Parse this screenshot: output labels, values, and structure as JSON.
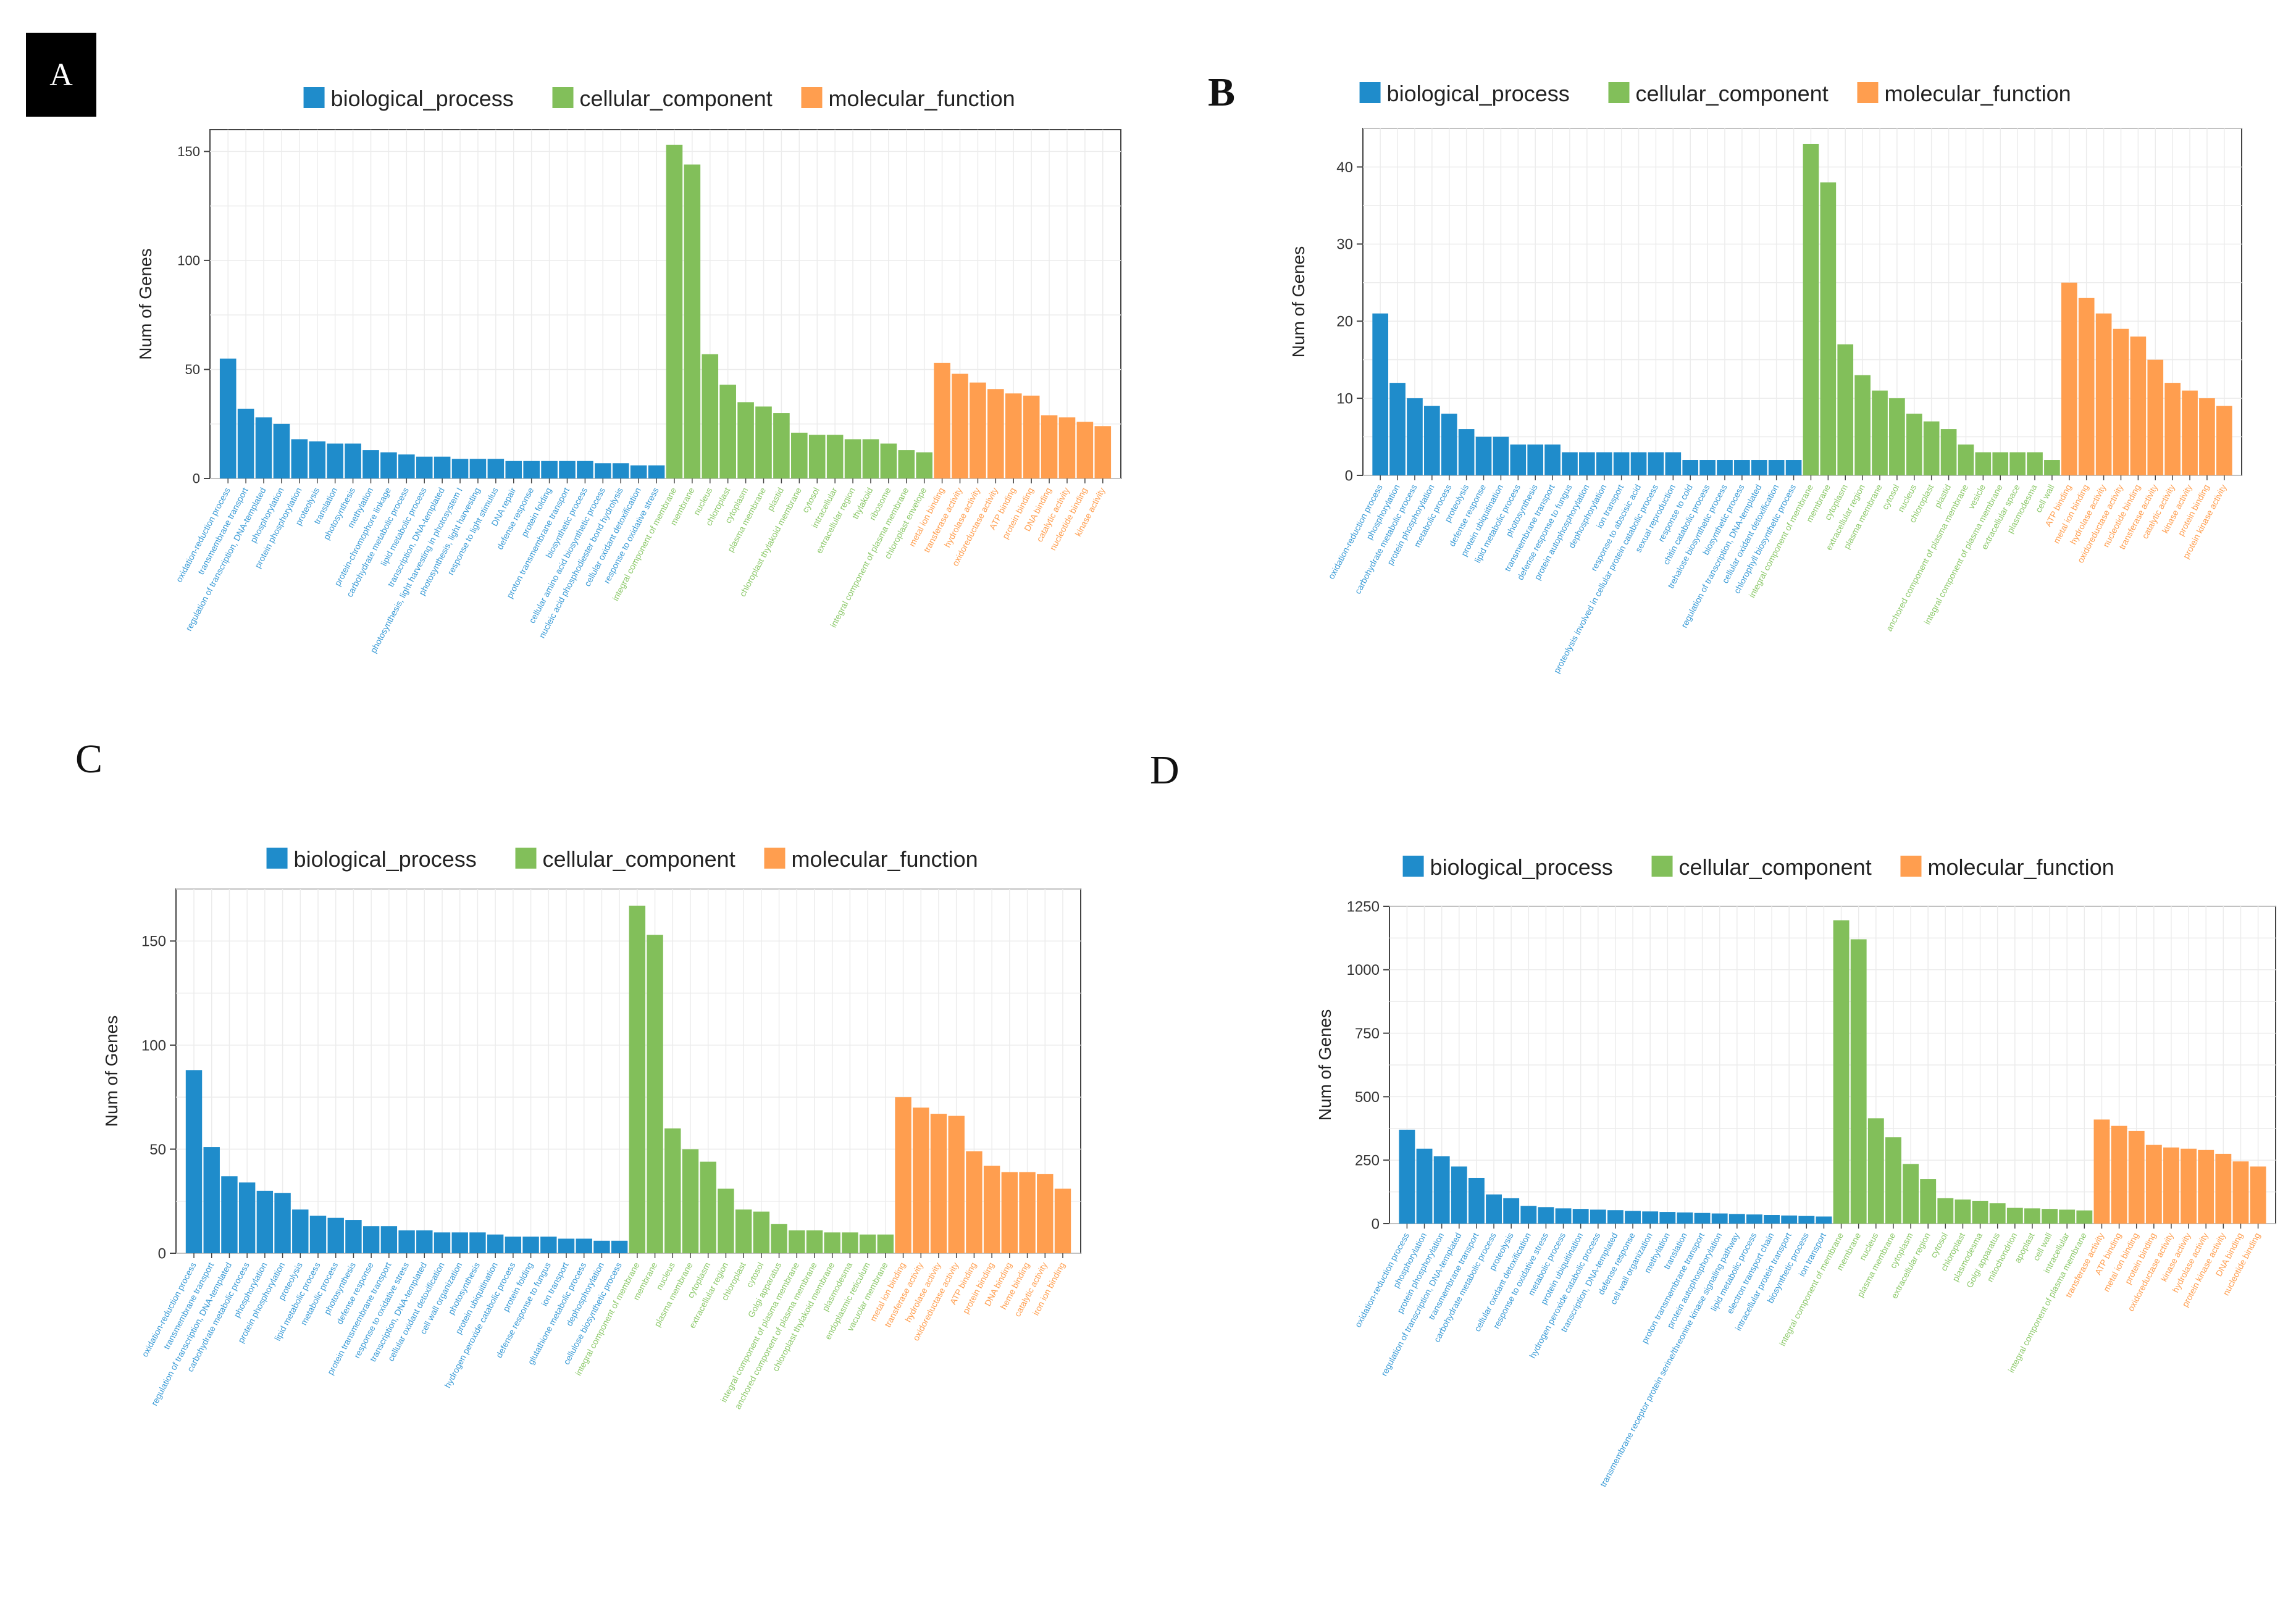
{
  "legend": {
    "biological_process": "biological_process",
    "cellular_component": "cellular_component",
    "molecular_function": "molecular_function"
  },
  "colors": {
    "biological_process": "#1f8ccb",
    "cellular_component": "#82bf5a",
    "molecular_function": "#ff9e4f"
  },
  "chart_data": [
    {
      "panel": "A",
      "type": "bar",
      "ylabel": "Num of Genes",
      "ylim": [
        0,
        160
      ],
      "yticks": [
        0,
        50,
        100,
        150
      ],
      "groups": [
        {
          "name": "biological_process",
          "categories": [
            "oxidation-reduction process",
            "transmembrane transport",
            "regulation of transcription, DNA-templated",
            "phosphorylation",
            "protein phosphorylation",
            "proteolysis",
            "translation",
            "photosynthesis",
            "methylation",
            "protein-chromophore linkage",
            "carbohydrate metabolic process",
            "lipid metabolic process",
            "transcription, DNA-templated",
            "photosynthesis, light harvesting in photosystem I",
            "photosynthesis, light harvesting",
            "response to light stimulus",
            "DNA repair",
            "defense response",
            "protein folding",
            "proton transmembrane transport",
            "biosynthetic process",
            "cellular amino acid biosynthetic process",
            "nucleic acid phosphodiester bond hydrolysis",
            "cellular oxidant detoxification",
            "response to oxidative stress"
          ],
          "values": [
            55,
            32,
            28,
            25,
            18,
            17,
            16,
            16,
            13,
            12,
            11,
            10,
            10,
            9,
            9,
            9,
            8,
            8,
            8,
            8,
            8,
            7,
            7,
            6,
            6
          ]
        },
        {
          "name": "cellular_component",
          "categories": [
            "integral component of membrane",
            "membrane",
            "nucleus",
            "chloroplast",
            "cytoplasm",
            "plasma membrane",
            "plastid",
            "chloroplast thylakoid membrane",
            "cytosol",
            "intracellular",
            "extracellular region",
            "thylakoid",
            "ribosome",
            "integral component of plasma membrane",
            "chloroplast envelope"
          ],
          "values": [
            153,
            144,
            57,
            43,
            35,
            33,
            30,
            21,
            20,
            20,
            18,
            18,
            16,
            13,
            12
          ]
        },
        {
          "name": "molecular_function",
          "categories": [
            "metal ion binding",
            "transferase activity",
            "hydrolase activity",
            "oxidoreductase activity",
            "ATP binding",
            "protein binding",
            "DNA binding",
            "catalytic activity",
            "nucleotide binding",
            "kinase activity"
          ],
          "values": [
            53,
            48,
            44,
            41,
            39,
            38,
            29,
            28,
            26,
            24
          ]
        }
      ]
    },
    {
      "panel": "B",
      "type": "bar",
      "ylabel": "Num of Genes",
      "ylim": [
        0,
        45
      ],
      "yticks": [
        0,
        10,
        20,
        30,
        40
      ],
      "groups": [
        {
          "name": "biological_process",
          "categories": [
            "oxidation-reduction process",
            "phosphorylation",
            "carbohydrate metabolic process",
            "protein phosphorylation",
            "metabolic process",
            "proteolysis",
            "defense response",
            "protein ubiquitination",
            "lipid metabolic process",
            "photosynthesis",
            "transmembrane transport",
            "defense response to fungus",
            "protein autophosphorylation",
            "dephosphorylation",
            "ion transport",
            "response to abscisic acid",
            "proteolysis involved in cellular protein catabolic process",
            "sexual reproduction",
            "response to cold",
            "chitin catabolic process",
            "trehalose biosynthetic process",
            "biosynthetic process",
            "regulation of transcription, DNA-templated",
            "cellular oxidant detoxification",
            "chlorophyll biosynthetic process"
          ],
          "values": [
            21,
            12,
            10,
            9,
            8,
            6,
            5,
            5,
            4,
            4,
            4,
            3,
            3,
            3,
            3,
            3,
            3,
            3,
            2,
            2,
            2,
            2,
            2,
            2,
            2
          ]
        },
        {
          "name": "cellular_component",
          "categories": [
            "integral component of membrane",
            "membrane",
            "cytoplasm",
            "extracellular region",
            "plasma membrane",
            "cytosol",
            "nucleus",
            "chloroplast",
            "plastid",
            "anchored component of plasma membrane",
            "vesicle",
            "integral component of plasma membrane",
            "extracellular space",
            "plasmodesma",
            "cell wall"
          ],
          "values": [
            43,
            38,
            17,
            13,
            11,
            10,
            8,
            7,
            6,
            4,
            3,
            3,
            3,
            3,
            2
          ]
        },
        {
          "name": "molecular_function",
          "categories": [
            "ATP binding",
            "metal ion binding",
            "hydrolase activity",
            "oxidoreductase activity",
            "nucleotide binding",
            "transferase activity",
            "catalytic activity",
            "kinase activity",
            "protein binding",
            "protein kinase activity"
          ],
          "values": [
            25,
            23,
            21,
            19,
            18,
            15,
            12,
            11,
            10,
            9
          ]
        }
      ]
    },
    {
      "panel": "C",
      "type": "bar",
      "ylabel": "Num of Genes",
      "ylim": [
        0,
        175
      ],
      "yticks": [
        0,
        50,
        100,
        150
      ],
      "groups": [
        {
          "name": "biological_process",
          "categories": [
            "oxidation-reduction process",
            "transmembrane transport",
            "regulation of transcription, DNA-templated",
            "carbohydrate metabolic process",
            "phosphorylation",
            "protein phosphorylation",
            "proteolysis",
            "lipid metabolic process",
            "metabolic process",
            "photosynthesis",
            "defense response",
            "protein transmembrane transport",
            "response to oxidative stress",
            "transcription, DNA-templated",
            "cellular oxidant detoxification",
            "cell wall organization",
            "photosynthesis",
            "protein ubiquitination",
            "hydrogen peroxide catabolic process",
            "protein folding",
            "defense response to fungus",
            "ion transport",
            "glutathione metabolic process",
            "dephosphorylation",
            "cellulose biosynthetic process"
          ],
          "values": [
            88,
            51,
            37,
            34,
            30,
            29,
            21,
            18,
            17,
            16,
            13,
            13,
            11,
            11,
            10,
            10,
            10,
            9,
            8,
            8,
            8,
            7,
            7,
            6,
            6
          ]
        },
        {
          "name": "cellular_component",
          "categories": [
            "integral component of membrane",
            "membrane",
            "nucleus",
            "plasma membrane",
            "cytoplasm",
            "extracellular region",
            "chloroplast",
            "cytosol",
            "Golgi apparatus",
            "integral component of plasma membrane",
            "anchored component of plasma membrane",
            "chloroplast thylakoid membrane",
            "plasmodesma",
            "endoplasmic reticulum",
            "vacuolar membrane"
          ],
          "values": [
            167,
            153,
            60,
            50,
            44,
            31,
            21,
            20,
            14,
            11,
            11,
            10,
            10,
            9,
            9
          ]
        },
        {
          "name": "molecular_function",
          "categories": [
            "metal ion binding",
            "transferase activity",
            "hydrolase activity",
            "oxidoreductase activity",
            "ATP binding",
            "protein binding",
            "DNA binding",
            "heme binding",
            "catalytic activity",
            "iron ion binding"
          ],
          "values": [
            75,
            70,
            67,
            66,
            49,
            42,
            39,
            39,
            38,
            31
          ]
        }
      ]
    },
    {
      "panel": "D",
      "type": "bar",
      "ylabel": "Num of Genes",
      "ylim": [
        0,
        1250
      ],
      "yticks": [
        0,
        250,
        500,
        750,
        1000,
        1250
      ],
      "groups": [
        {
          "name": "biological_process",
          "categories": [
            "oxidation-reduction process",
            "phosphorylation",
            "protein phosphorylation",
            "regulation of transcription, DNA-templated",
            "transmembrane transport",
            "carbohydrate metabolic process",
            "proteolysis",
            "cellular oxidant detoxification",
            "response to oxidative stress",
            "metabolic process",
            "protein ubiquitination",
            "hydrogen peroxide catabolic process",
            "transcription, DNA-templated",
            "defense response",
            "cell wall organization",
            "methylation",
            "translation",
            "proton transmembrane transport",
            "protein autophosphorylation",
            "transmembrane receptor protein serine/threonine kinase signaling pathway",
            "lipid metabolic process",
            "electron transport chain",
            "intracellular protein transport",
            "biosynthetic process",
            "ion transport"
          ],
          "values": [
            370,
            295,
            265,
            225,
            180,
            115,
            100,
            70,
            65,
            60,
            58,
            55,
            53,
            50,
            48,
            46,
            44,
            42,
            40,
            38,
            36,
            34,
            32,
            30,
            28
          ]
        },
        {
          "name": "cellular_component",
          "categories": [
            "integral component of membrane",
            "membrane",
            "nucleus",
            "plasma membrane",
            "cytoplasm",
            "extracellular region",
            "cytosol",
            "chloroplast",
            "plasmodesma",
            "Golgi apparatus",
            "mitochondrion",
            "apoplast",
            "cell wall",
            "intracellular",
            "integral component of plasma membrane"
          ],
          "values": [
            1195,
            1120,
            415,
            340,
            235,
            175,
            100,
            95,
            90,
            80,
            62,
            60,
            58,
            55,
            52
          ]
        },
        {
          "name": "molecular_function",
          "categories": [
            "transferase activity",
            "ATP binding",
            "metal ion binding",
            "protein binding",
            "oxidoreductase activity",
            "kinase activity",
            "hydrolase activity",
            "protein kinase activity",
            "DNA binding",
            "nucleotide binding"
          ],
          "values": [
            410,
            385,
            365,
            310,
            300,
            295,
            290,
            275,
            245,
            225
          ]
        }
      ]
    }
  ],
  "panel_labels": {
    "A": "A",
    "B": "B",
    "C": "C",
    "D": "D"
  }
}
